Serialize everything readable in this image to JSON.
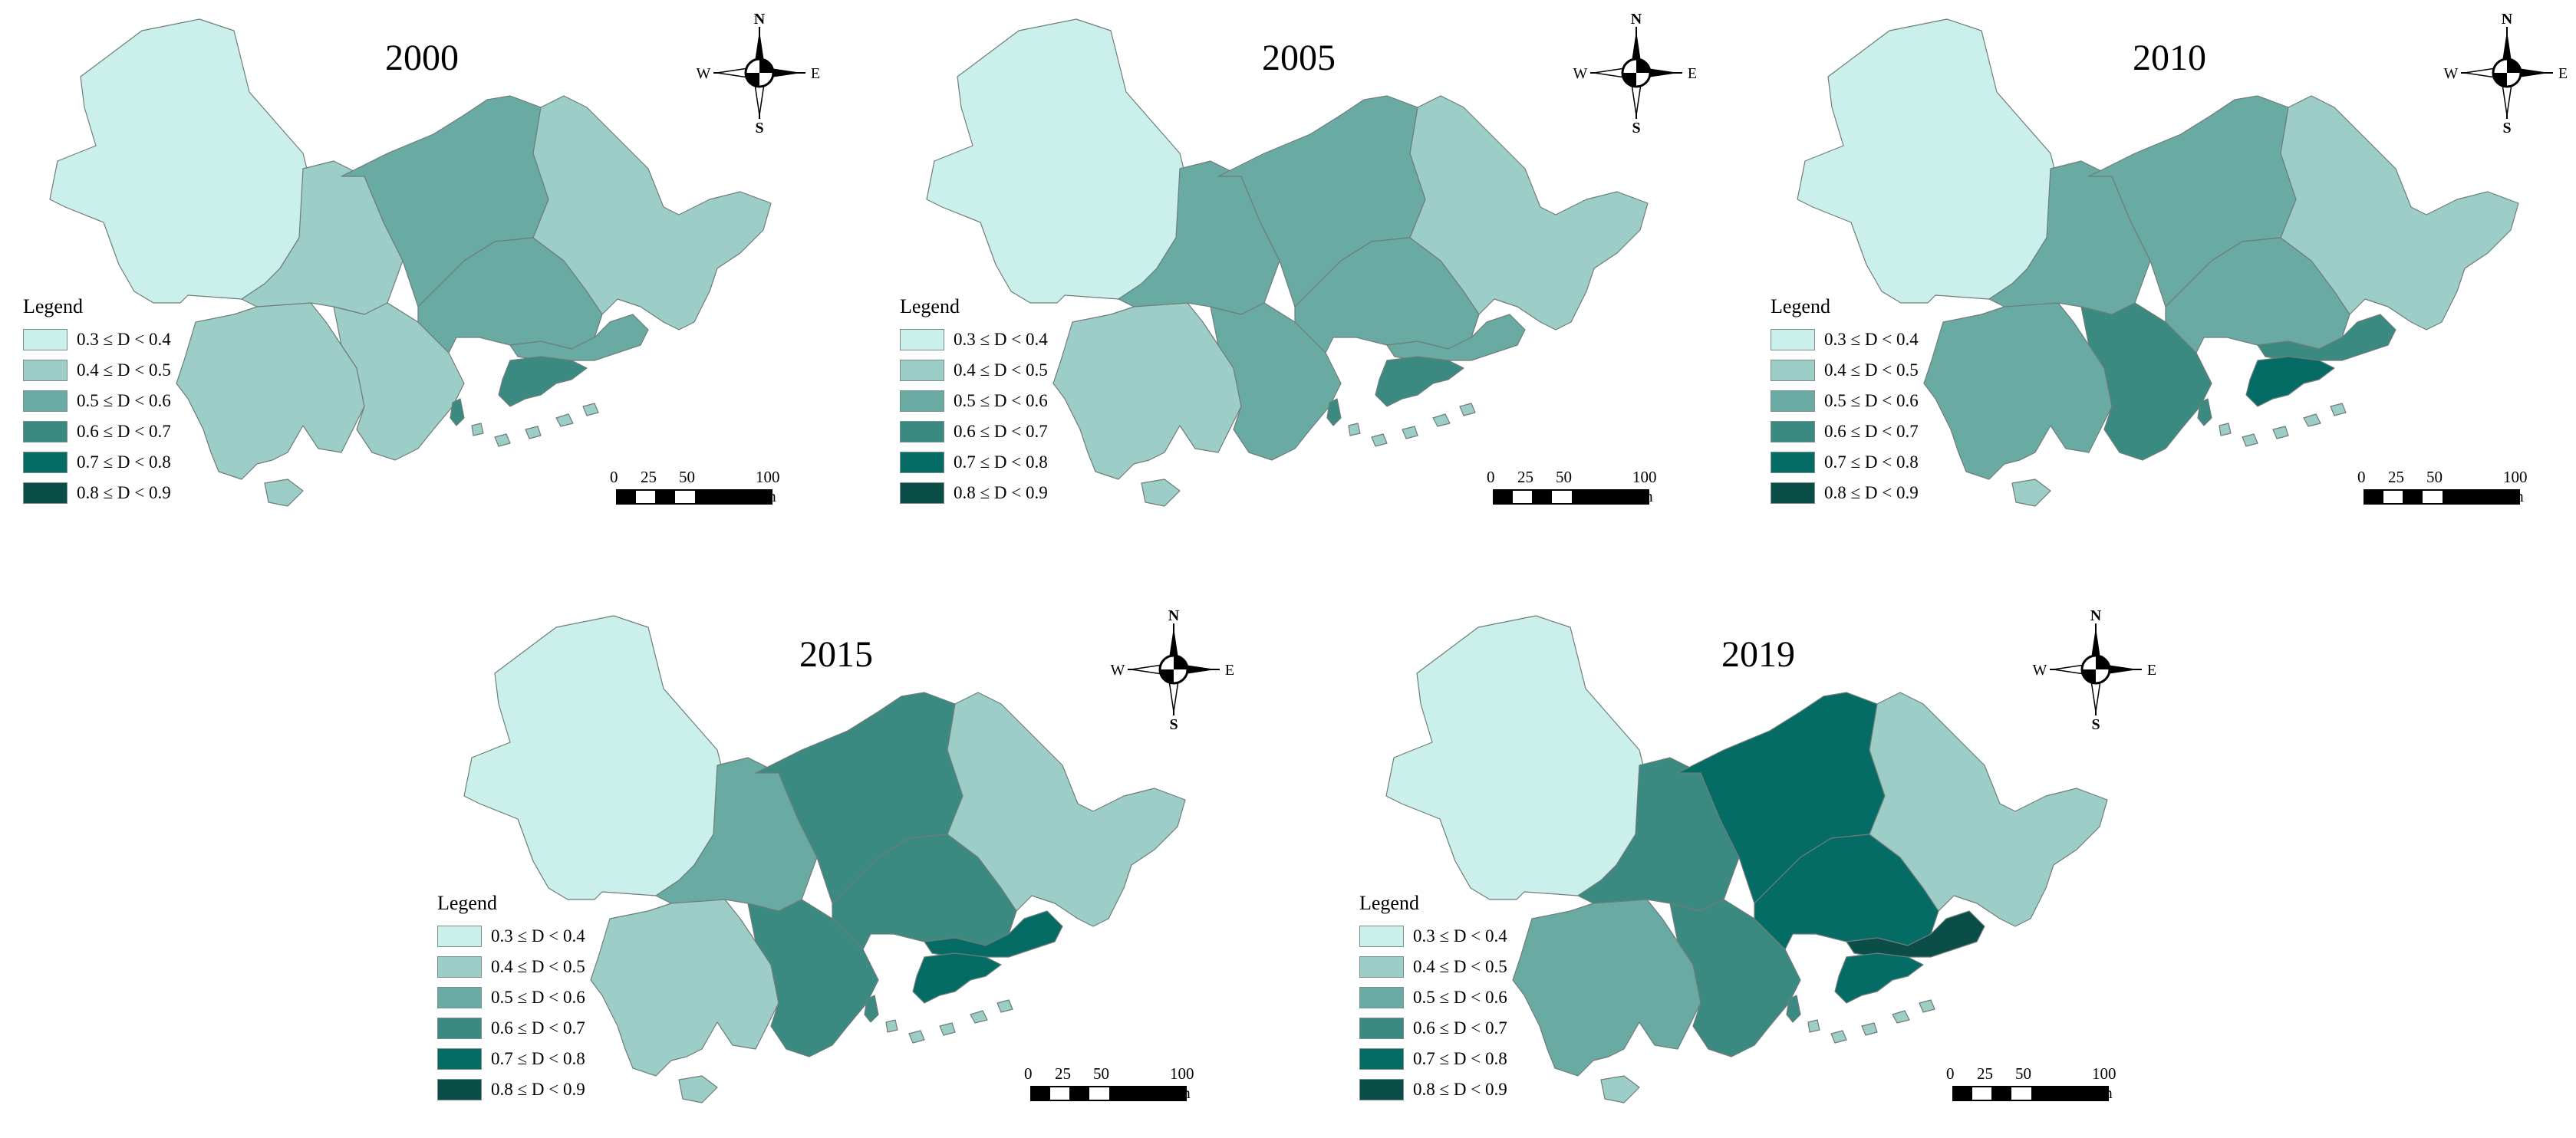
{
  "legend": {
    "title": "Legend",
    "classes": [
      {
        "label": "0.3 ≤ D < 0.4",
        "color": "#cbf0eb"
      },
      {
        "label": "0.4 ≤ D < 0.5",
        "color": "#9ccdc7"
      },
      {
        "label": "0.5 ≤ D < 0.6",
        "color": "#69aba3"
      },
      {
        "label": "0.6 ≤ D < 0.7",
        "color": "#3b8a82"
      },
      {
        "label": "0.7 ≤ D < 0.8",
        "color": "#046c64"
      },
      {
        "label": "0.8 ≤ D < 0.9",
        "color": "#0a4e47"
      }
    ]
  },
  "compass": {
    "n": "N",
    "s": "S",
    "e": "E",
    "w": "W"
  },
  "scalebar": {
    "labels": [
      "0",
      "25",
      "50",
      "100 km"
    ]
  },
  "panels": [
    {
      "year": "2000",
      "classes": {
        "northwest": 0,
        "centralwest": 1,
        "southwest": 1,
        "southcentral": 1,
        "north": 2,
        "center": 2,
        "east": 1,
        "southbay": 2,
        "island": 3,
        "strip": 3
      }
    },
    {
      "year": "2005",
      "classes": {
        "northwest": 0,
        "centralwest": 2,
        "southwest": 1,
        "southcentral": 2,
        "north": 2,
        "center": 2,
        "east": 1,
        "southbay": 2,
        "island": 3,
        "strip": 3
      }
    },
    {
      "year": "2010",
      "classes": {
        "northwest": 0,
        "centralwest": 2,
        "southwest": 2,
        "southcentral": 3,
        "north": 2,
        "center": 2,
        "east": 1,
        "southbay": 3,
        "island": 4,
        "strip": 3
      }
    },
    {
      "year": "2015",
      "classes": {
        "northwest": 0,
        "centralwest": 2,
        "southwest": 1,
        "southcentral": 3,
        "north": 3,
        "center": 3,
        "east": 1,
        "southbay": 4,
        "island": 4,
        "strip": 3
      }
    },
    {
      "year": "2019",
      "classes": {
        "northwest": 0,
        "centralwest": 3,
        "southwest": 2,
        "southcentral": 3,
        "north": 4,
        "center": 4,
        "east": 1,
        "southbay": 5,
        "island": 4,
        "strip": 3
      }
    }
  ]
}
